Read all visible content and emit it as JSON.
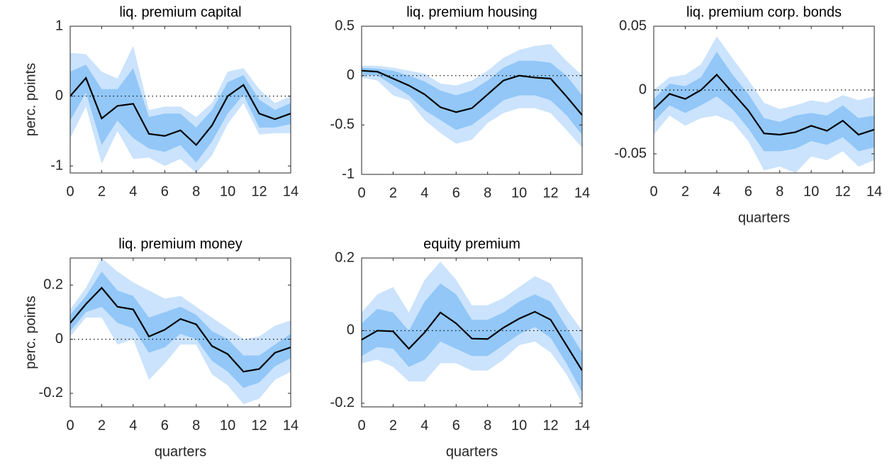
{
  "chart_data": [
    {
      "type": "line",
      "title": "liq. premium capital",
      "ylabel": "perc. points",
      "x": [
        0,
        1,
        2,
        3,
        4,
        5,
        6,
        7,
        8,
        9,
        10,
        11,
        12,
        13,
        14
      ],
      "xlim": [
        0,
        14
      ],
      "xticks": [
        0,
        2,
        4,
        6,
        8,
        10,
        12,
        14
      ],
      "ylim": [
        -1.1,
        1
      ],
      "yticks": [
        -1,
        0,
        1
      ],
      "color": "#000000",
      "values": [
        0,
        0.26,
        -0.32,
        -0.14,
        -0.11,
        -0.54,
        -0.57,
        -0.49,
        -0.7,
        -0.42,
        0,
        0.16,
        -0.25,
        -0.33,
        -0.25
      ],
      "bands": [
        {
          "color": "#cbe3fc",
          "upper": [
            0.62,
            0.6,
            0.35,
            0.25,
            0.72,
            -0.2,
            -0.15,
            -0.15,
            -0.3,
            -0.1,
            0.35,
            0.4,
            0.1,
            -0.1,
            0
          ],
          "lower": [
            -0.6,
            -0.15,
            -0.97,
            -0.5,
            -0.9,
            -0.88,
            -1,
            -0.9,
            -1.1,
            -0.85,
            -0.4,
            -0.1,
            -0.55,
            -0.53,
            -0.53
          ]
        },
        {
          "color": "#92c7f8",
          "upper": [
            0.35,
            0.45,
            0.1,
            0.1,
            0.4,
            -0.3,
            -0.25,
            -0.25,
            -0.45,
            -0.2,
            0.2,
            0.3,
            -0.05,
            -0.2,
            -0.1
          ],
          "lower": [
            -0.35,
            0.05,
            -0.7,
            -0.35,
            -0.6,
            -0.75,
            -0.8,
            -0.7,
            -0.95,
            -0.65,
            -0.25,
            0.02,
            -0.45,
            -0.45,
            -0.4
          ]
        }
      ]
    },
    {
      "type": "line",
      "title": "liq. premium housing",
      "x": [
        0,
        1,
        2,
        3,
        4,
        5,
        6,
        7,
        8,
        9,
        10,
        11,
        12,
        13,
        14
      ],
      "xlim": [
        0,
        14
      ],
      "xticks": [
        0,
        2,
        4,
        6,
        8,
        10,
        12,
        14
      ],
      "ylim": [
        -1,
        0.5
      ],
      "yticks": [
        -1,
        -0.5,
        0,
        0.5
      ],
      "color": "#000000",
      "values": [
        0.05,
        0.04,
        -0.03,
        -0.1,
        -0.19,
        -0.32,
        -0.37,
        -0.33,
        -0.19,
        -0.05,
        0,
        -0.02,
        -0.03,
        -0.21,
        -0.4
      ],
      "bands": [
        {
          "color": "#cbe3fc",
          "upper": [
            0.1,
            0.1,
            0.08,
            0.05,
            0.02,
            -0.08,
            -0.1,
            -0.05,
            0.05,
            0.18,
            0.26,
            0.3,
            0.32,
            0.15,
            0
          ],
          "lower": [
            -0.02,
            -0.05,
            -0.2,
            -0.25,
            -0.45,
            -0.58,
            -0.69,
            -0.65,
            -0.48,
            -0.38,
            -0.33,
            -0.33,
            -0.38,
            -0.55,
            -0.73
          ]
        },
        {
          "color": "#92c7f8",
          "upper": [
            0.08,
            0.07,
            0.05,
            0,
            -0.06,
            -0.15,
            -0.2,
            -0.15,
            -0.05,
            0.08,
            0.15,
            0.15,
            0.13,
            0,
            -0.2
          ],
          "lower": [
            0.01,
            0,
            -0.1,
            -0.2,
            -0.35,
            -0.45,
            -0.55,
            -0.5,
            -0.38,
            -0.25,
            -0.2,
            -0.2,
            -0.25,
            -0.4,
            -0.6
          ]
        }
      ]
    },
    {
      "type": "line",
      "title": "liq. premium corp. bonds",
      "xlabel": "quarters",
      "x": [
        0,
        1,
        2,
        3,
        4,
        5,
        6,
        7,
        8,
        9,
        10,
        11,
        12,
        13,
        14
      ],
      "xlim": [
        0,
        14
      ],
      "xticks": [
        0,
        2,
        4,
        6,
        8,
        10,
        12,
        14
      ],
      "ylim": [
        -0.065,
        0.05
      ],
      "yticks": [
        -0.05,
        0,
        0.05
      ],
      "color": "#000000",
      "values": [
        -0.015,
        -0.003,
        -0.007,
        0,
        0.012,
        -0.002,
        -0.016,
        -0.034,
        -0.035,
        -0.033,
        -0.028,
        -0.032,
        -0.024,
        -0.035,
        -0.031
      ],
      "bands": [
        {
          "color": "#cbe3fc",
          "upper": [
            0,
            0.01,
            0.012,
            0.02,
            0.042,
            0.025,
            0.008,
            -0.01,
            -0.015,
            -0.012,
            -0.008,
            -0.01,
            -0.004,
            -0.008,
            -0.005
          ],
          "lower": [
            -0.035,
            -0.02,
            -0.028,
            -0.022,
            -0.02,
            -0.025,
            -0.04,
            -0.063,
            -0.06,
            -0.065,
            -0.052,
            -0.055,
            -0.048,
            -0.06,
            -0.055
          ]
        },
        {
          "color": "#92c7f8",
          "upper": [
            -0.007,
            0.005,
            0.003,
            0.01,
            0.03,
            0.012,
            -0.003,
            -0.022,
            -0.025,
            -0.02,
            -0.018,
            -0.02,
            -0.012,
            -0.022,
            -0.02
          ],
          "lower": [
            -0.025,
            -0.012,
            -0.018,
            -0.012,
            -0.005,
            -0.015,
            -0.03,
            -0.048,
            -0.048,
            -0.046,
            -0.04,
            -0.043,
            -0.037,
            -0.048,
            -0.045
          ]
        }
      ]
    },
    {
      "type": "line",
      "title": "liq. premium money",
      "ylabel": "perc. points",
      "xlabel": "quarters",
      "x": [
        0,
        1,
        2,
        3,
        4,
        5,
        6,
        7,
        8,
        9,
        10,
        11,
        12,
        13,
        14
      ],
      "xlim": [
        0,
        14
      ],
      "xticks": [
        0,
        2,
        4,
        6,
        8,
        10,
        12,
        14
      ],
      "ylim": [
        -0.25,
        0.3
      ],
      "yticks": [
        -0.2,
        0,
        0.2
      ],
      "color": "#000000",
      "values": [
        0.06,
        0.13,
        0.19,
        0.12,
        0.11,
        0.01,
        0.035,
        0.075,
        0.055,
        -0.025,
        -0.055,
        -0.12,
        -0.11,
        -0.05,
        -0.03
      ],
      "bands": [
        {
          "color": "#cbe3fc",
          "upper": [
            0.11,
            0.19,
            0.3,
            0.25,
            0.21,
            0.18,
            0.15,
            0.16,
            0.12,
            0.08,
            0.04,
            0,
            0.01,
            0.05,
            0.07
          ],
          "lower": [
            0.01,
            0.08,
            0.08,
            -0.02,
            0,
            -0.15,
            -0.09,
            -0.02,
            -0.02,
            -0.13,
            -0.17,
            -0.24,
            -0.22,
            -0.15,
            -0.12
          ]
        },
        {
          "color": "#92c7f8",
          "upper": [
            0.09,
            0.16,
            0.25,
            0.18,
            0.16,
            0.08,
            0.1,
            0.12,
            0.09,
            0.03,
            0,
            -0.06,
            -0.06,
            -0.02,
            0.02
          ],
          "lower": [
            0.03,
            0.1,
            0.12,
            0.06,
            0.04,
            -0.05,
            -0.03,
            0.02,
            0,
            -0.08,
            -0.12,
            -0.18,
            -0.16,
            -0.1,
            -0.07
          ]
        }
      ]
    },
    {
      "type": "line",
      "title": "equity premium",
      "xlabel": "quarters",
      "x": [
        0,
        1,
        2,
        3,
        4,
        5,
        6,
        7,
        8,
        9,
        10,
        11,
        12,
        13,
        14
      ],
      "xlim": [
        0,
        14
      ],
      "xticks": [
        0,
        2,
        4,
        6,
        8,
        10,
        12,
        14
      ],
      "ylim": [
        -0.21,
        0.2
      ],
      "yticks": [
        -0.2,
        0,
        0.2
      ],
      "color": "#000000",
      "values": [
        -0.025,
        0,
        -0.002,
        -0.05,
        -0.005,
        0.05,
        0.02,
        -0.022,
        -0.023,
        0.008,
        0.033,
        0.052,
        0.03,
        -0.04,
        -0.11
      ],
      "bands": [
        {
          "color": "#cbe3fc",
          "upper": [
            0.05,
            0.1,
            0.12,
            0.05,
            0.14,
            0.19,
            0.14,
            0.07,
            0.07,
            0.09,
            0.12,
            0.15,
            0.13,
            0.06,
            0
          ],
          "lower": [
            -0.09,
            -0.08,
            -0.1,
            -0.14,
            -0.14,
            -0.09,
            -0.09,
            -0.11,
            -0.11,
            -0.08,
            -0.04,
            -0.03,
            -0.06,
            -0.12,
            -0.2
          ]
        },
        {
          "color": "#92c7f8",
          "upper": [
            0.02,
            0.06,
            0.05,
            0,
            0.08,
            0.13,
            0.1,
            0.03,
            0.03,
            0.05,
            0.08,
            0.1,
            0.08,
            0.01,
            -0.06
          ],
          "lower": [
            -0.07,
            -0.045,
            -0.05,
            -0.1,
            -0.08,
            -0.03,
            -0.05,
            -0.07,
            -0.07,
            -0.04,
            -0.01,
            0.01,
            -0.02,
            -0.09,
            -0.17
          ]
        }
      ]
    }
  ]
}
